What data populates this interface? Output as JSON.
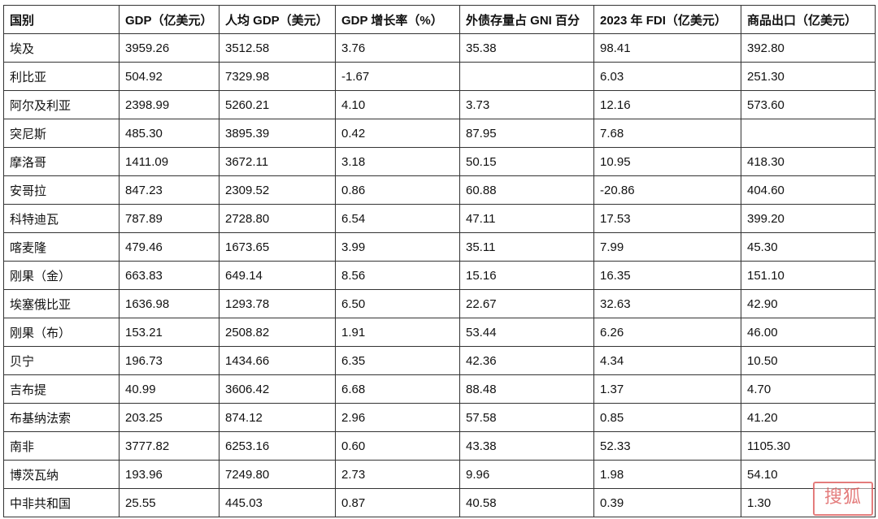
{
  "table": {
    "headers": [
      "国别",
      "GDP（亿美元）",
      "人均 GDP（美元）",
      "GDP 增长率（%）",
      "外债存量占 GNI 百分",
      "2023 年 FDI（亿美元）",
      "商品出口（亿美元）"
    ],
    "rows": [
      [
        "埃及",
        "3959.26",
        "3512.58",
        "3.76",
        "35.38",
        "98.41",
        "392.80"
      ],
      [
        "利比亚",
        "504.92",
        "7329.98",
        "-1.67",
        "",
        "6.03",
        "251.30"
      ],
      [
        "阿尔及利亚",
        "2398.99",
        "5260.21",
        "4.10",
        "3.73",
        "12.16",
        "573.60"
      ],
      [
        "突尼斯",
        "485.30",
        "3895.39",
        "0.42",
        "87.95",
        "7.68",
        ""
      ],
      [
        "摩洛哥",
        "1411.09",
        "3672.11",
        "3.18",
        "50.15",
        "10.95",
        "418.30"
      ],
      [
        "安哥拉",
        "847.23",
        "2309.52",
        "0.86",
        "60.88",
        "-20.86",
        "404.60"
      ],
      [
        "科特迪瓦",
        "787.89",
        "2728.80",
        "6.54",
        "47.11",
        "17.53",
        "399.20"
      ],
      [
        "喀麦隆",
        "479.46",
        "1673.65",
        "3.99",
        "35.11",
        "7.99",
        "45.30"
      ],
      [
        "刚果（金）",
        "663.83",
        "649.14",
        "8.56",
        "15.16",
        "16.35",
        "151.10"
      ],
      [
        "埃塞俄比亚",
        "1636.98",
        "1293.78",
        "6.50",
        "22.67",
        "32.63",
        "42.90"
      ],
      [
        "刚果（布）",
        "153.21",
        "2508.82",
        "1.91",
        "53.44",
        "6.26",
        "46.00"
      ],
      [
        "贝宁",
        "196.73",
        "1434.66",
        "6.35",
        "42.36",
        "4.34",
        "10.50"
      ],
      [
        "吉布提",
        "40.99",
        "3606.42",
        "6.68",
        "88.48",
        "1.37",
        "4.70"
      ],
      [
        "布基纳法索",
        "203.25",
        "874.12",
        "2.96",
        "57.58",
        "0.85",
        "41.20"
      ],
      [
        "南非",
        "3777.82",
        "6253.16",
        "0.60",
        "43.38",
        "52.33",
        "1105.30"
      ],
      [
        "博茨瓦纳",
        "193.96",
        "7249.80",
        "2.73",
        "9.96",
        "1.98",
        "54.10"
      ],
      [
        "中非共和国",
        "25.55",
        "445.03",
        "0.87",
        "40.58",
        "0.39",
        "1.30"
      ]
    ]
  },
  "watermark": {
    "text": "搜狐"
  }
}
